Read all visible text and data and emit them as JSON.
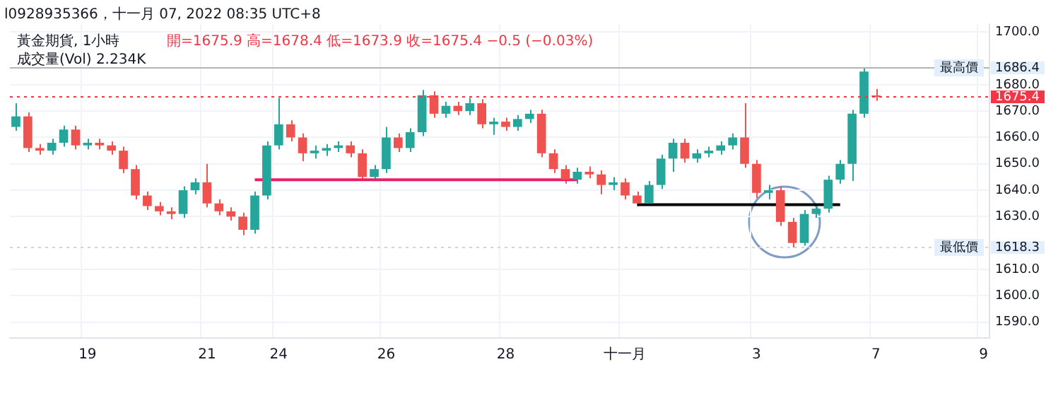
{
  "chart_data": {
    "type": "candlestick",
    "title": "黃金期貨, 1小時",
    "subtitle": "開=1675.9 高=1678.4 低=1673.9 收=1675.4 −0.5 (−0.03%)",
    "annotations": [
      "l0928935366，十一月 07, 2022 08:35 UTC+8",
      "成交量(Vol) 2.234K",
      "1686.4",
      "1618.3",
      "1675.4"
    ],
    "categories": [
      null,
      null,
      null,
      null,
      null,
      null,
      "19",
      null,
      null,
      null,
      null,
      null,
      null,
      null,
      null,
      null,
      "21",
      null,
      null,
      null,
      null,
      null,
      "24",
      null,
      null,
      null,
      null,
      null,
      null,
      null,
      null,
      "26",
      null,
      null,
      null,
      null,
      null,
      null,
      null,
      null,
      null,
      "28",
      null,
      null,
      null,
      null,
      null,
      null,
      null,
      null,
      null,
      "十一月",
      null,
      null,
      null,
      null,
      null,
      null,
      null,
      null,
      null,
      null,
      "3",
      null,
      null,
      null,
      null,
      null,
      null,
      null,
      null,
      null,
      "7",
      null,
      null,
      null,
      null,
      null,
      null,
      null,
      null,
      "9"
    ],
    "ohlc": [
      [
        1664,
        1673,
        1662.5,
        1668
      ],
      [
        1668,
        1669.5,
        1654.5,
        1656
      ],
      [
        1656,
        1657.5,
        1653.5,
        1655
      ],
      [
        1655,
        1659.5,
        1653.5,
        1658
      ],
      [
        1658,
        1664.5,
        1656.5,
        1663
      ],
      [
        1663,
        1664.5,
        1655.5,
        1657
      ],
      [
        1657,
        1659.5,
        1655.5,
        1658
      ],
      [
        1658,
        1659.5,
        1655.5,
        1657
      ],
      [
        1657,
        1658.5,
        1653.5,
        1655
      ],
      [
        1655,
        1656.5,
        1646.5,
        1648
      ],
      [
        1648,
        1649.5,
        1636.5,
        1638
      ],
      [
        1638,
        1639.5,
        1632.5,
        1634
      ],
      [
        1634,
        1635.5,
        1630.5,
        1632
      ],
      [
        1632,
        1633.5,
        1629,
        1631
      ],
      [
        1631,
        1641.5,
        1629.5,
        1640
      ],
      [
        1640,
        1644.5,
        1638.5,
        1643
      ],
      [
        1643,
        1650,
        1633.5,
        1635
      ],
      [
        1635,
        1636.5,
        1630.5,
        1632
      ],
      [
        1632,
        1633.5,
        1628.5,
        1630
      ],
      [
        1630,
        1631.5,
        1623,
        1625
      ],
      [
        1625,
        1639.5,
        1623.5,
        1638
      ],
      [
        1638,
        1658.5,
        1636.5,
        1657
      ],
      [
        1657,
        1675,
        1655.5,
        1665
      ],
      [
        1665,
        1666.5,
        1658.5,
        1660
      ],
      [
        1660,
        1661.5,
        1651,
        1654
      ],
      [
        1654,
        1657,
        1652,
        1655
      ],
      [
        1655,
        1657.5,
        1653,
        1656
      ],
      [
        1656,
        1658.5,
        1654.5,
        1657
      ],
      [
        1657,
        1658.5,
        1652.5,
        1654
      ],
      [
        1654,
        1655.5,
        1643.5,
        1645
      ],
      [
        1645,
        1649.5,
        1643.5,
        1648
      ],
      [
        1648,
        1664,
        1646.5,
        1660
      ],
      [
        1660,
        1661.5,
        1654.5,
        1656
      ],
      [
        1656,
        1663.5,
        1654.5,
        1662
      ],
      [
        1662,
        1678,
        1660.5,
        1676
      ],
      [
        1676,
        1677.5,
        1667.5,
        1669
      ],
      [
        1669,
        1673.5,
        1667.5,
        1672
      ],
      [
        1672,
        1673.5,
        1668.5,
        1670
      ],
      [
        1670,
        1675,
        1668.5,
        1673
      ],
      [
        1673,
        1674.5,
        1663.5,
        1665
      ],
      [
        1665,
        1667.5,
        1661,
        1666
      ],
      [
        1666,
        1667.5,
        1662.5,
        1664
      ],
      [
        1664,
        1668.5,
        1662.5,
        1667
      ],
      [
        1667,
        1670.5,
        1665.5,
        1669
      ],
      [
        1669,
        1670.5,
        1652.5,
        1654
      ],
      [
        1654,
        1655.5,
        1646.5,
        1648
      ],
      [
        1648,
        1649.5,
        1642.5,
        1644
      ],
      [
        1644,
        1648.5,
        1642.5,
        1647
      ],
      [
        1647,
        1649,
        1644.5,
        1646
      ],
      [
        1646,
        1647.5,
        1638.5,
        1642
      ],
      [
        1642,
        1645,
        1640,
        1643
      ],
      [
        1643,
        1644.5,
        1636.5,
        1638
      ],
      [
        1638,
        1639.5,
        1634,
        1635
      ],
      [
        1635,
        1643.5,
        1634.5,
        1642
      ],
      [
        1642,
        1653.5,
        1640.5,
        1652
      ],
      [
        1652,
        1659.5,
        1647,
        1658
      ],
      [
        1658,
        1659.5,
        1650.5,
        1652
      ],
      [
        1652,
        1655.5,
        1650.5,
        1654
      ],
      [
        1654,
        1656.5,
        1652.5,
        1655
      ],
      [
        1655,
        1658.5,
        1653.5,
        1657
      ],
      [
        1657,
        1661.5,
        1655.5,
        1660
      ],
      [
        1660,
        1673,
        1648.5,
        1650
      ],
      [
        1650,
        1651.5,
        1637,
        1639
      ],
      [
        1639,
        1642,
        1636.5,
        1640
      ],
      [
        1640,
        1641.5,
        1626.5,
        1628
      ],
      [
        1628,
        1629.5,
        1618.3,
        1620
      ],
      [
        1620,
        1632.5,
        1619,
        1631
      ],
      [
        1631,
        1634.5,
        1629.5,
        1633
      ],
      [
        1633,
        1645.5,
        1631.5,
        1644
      ],
      [
        1644,
        1651.5,
        1642.5,
        1650
      ],
      [
        1650,
        1670.5,
        1643.5,
        1669
      ],
      [
        1669,
        1686.4,
        1667.5,
        1685
      ],
      [
        1675.9,
        1678.4,
        1673.9,
        1675.4
      ],
      null,
      null,
      null,
      null,
      null,
      null,
      null,
      null,
      null
    ],
    "colors": [
      "#26a69a",
      "#ef5350",
      "#ef5350",
      "#26a69a",
      "#26a69a",
      "#ef5350",
      "#26a69a",
      "#ef5350",
      "#ef5350",
      "#ef5350",
      "#ef5350",
      "#ef5350",
      "#ef5350",
      "#ef5350",
      "#26a69a",
      "#26a69a",
      "#ef5350",
      "#ef5350",
      "#ef5350",
      "#ef5350",
      "#26a69a",
      "#26a69a",
      "#26a69a",
      "#ef5350",
      "#ef5350",
      "#26a69a",
      "#26a69a",
      "#26a69a",
      "#ef5350",
      "#ef5350",
      "#26a69a",
      "#26a69a",
      "#ef5350",
      "#26a69a",
      "#26a69a",
      "#ef5350",
      "#26a69a",
      "#ef5350",
      "#26a69a",
      "#ef5350",
      "#26a69a",
      "#ef5350",
      "#26a69a",
      "#26a69a",
      "#ef5350",
      "#ef5350",
      "#ef5350",
      "#26a69a",
      "#ef5350",
      "#ef5350",
      "#26a69a",
      "#ef5350",
      "#ef5350",
      "#26a69a",
      "#26a69a",
      "#26a69a",
      "#ef5350",
      "#26a69a",
      "#26a69a",
      "#26a69a",
      "#26a69a",
      "#ef5350",
      "#ef5350",
      "#26a69a",
      "#ef5350",
      "#ef5350",
      "#26a69a",
      "#26a69a",
      "#26a69a",
      "#26a69a",
      "#26a69a",
      "#26a69a",
      "#ef5350",
      null,
      null,
      null,
      null,
      null,
      null,
      null,
      null,
      null
    ],
    "series": [
      {
        "type": "line",
        "color": "#e91e63",
        "values": [
          null,
          null,
          null,
          null,
          null,
          null,
          null,
          null,
          null,
          null,
          null,
          null,
          null,
          null,
          null,
          null,
          null,
          null,
          null,
          null,
          1644,
          1644,
          1644,
          1644,
          1644,
          1644,
          1644,
          1644,
          1644,
          1644,
          1644,
          1644,
          1644,
          1644,
          1644,
          1644,
          1644,
          1644,
          1644,
          1644,
          1644,
          1644,
          1644,
          1644,
          1644,
          1644,
          1644,
          1644,
          null,
          null,
          null,
          null,
          null,
          null,
          null,
          null,
          null,
          null,
          null,
          null,
          null,
          null,
          null,
          null,
          null,
          null,
          null,
          null,
          null,
          null,
          null,
          null,
          null,
          null,
          null,
          null,
          null,
          null,
          null,
          null,
          null,
          null
        ]
      },
      {
        "type": "line",
        "color": "#000000",
        "values": [
          null,
          null,
          null,
          null,
          null,
          null,
          null,
          null,
          null,
          null,
          null,
          null,
          null,
          null,
          null,
          null,
          null,
          null,
          null,
          null,
          null,
          null,
          null,
          null,
          null,
          null,
          null,
          null,
          null,
          null,
          null,
          null,
          null,
          null,
          null,
          null,
          null,
          null,
          null,
          null,
          null,
          null,
          null,
          null,
          null,
          null,
          null,
          null,
          null,
          null,
          null,
          null,
          1634.5,
          1634.5,
          1634.5,
          1634.5,
          1634.5,
          1634.5,
          1634.5,
          1634.5,
          1634.5,
          1634.5,
          1634.5,
          1634.5,
          1634.5,
          1634.5,
          1634.5,
          1634.5,
          1634.5,
          1634.5,
          null,
          null,
          null,
          null,
          null,
          null,
          null,
          null,
          null,
          null,
          null,
          null
        ]
      }
    ],
    "ylim": [
      1584,
      1703
    ],
    "yticks": [
      {
        "value": 1590,
        "label": "1590.0"
      },
      {
        "value": 1600,
        "label": "1600.0"
      },
      {
        "value": 1610,
        "label": "1610.0"
      },
      {
        "value": 1630,
        "label": "1630.0"
      },
      {
        "value": 1640,
        "label": "1640.0"
      },
      {
        "value": 1650,
        "label": "1650.0"
      },
      {
        "value": 1660,
        "label": "1660.0"
      },
      {
        "value": 1670,
        "label": "1670.0"
      },
      {
        "value": 1680,
        "label": "1680.0"
      },
      {
        "value": 1700,
        "label": "1700.0"
      }
    ],
    "ref_lines": [
      {
        "axis": "y",
        "value": 1686.4,
        "label": "最高價",
        "color": "#b2b5be",
        "line_style": "solid"
      },
      {
        "axis": "y",
        "value": 1618.3,
        "label": "最低價",
        "color": "#d1d4dc",
        "line_style": "dotted"
      },
      {
        "axis": "y",
        "value": 1675.4,
        "label": null,
        "color": "#f23645",
        "line_style": "dotted"
      }
    ],
    "grid": true,
    "legend": false,
    "marker": "none"
  }
}
